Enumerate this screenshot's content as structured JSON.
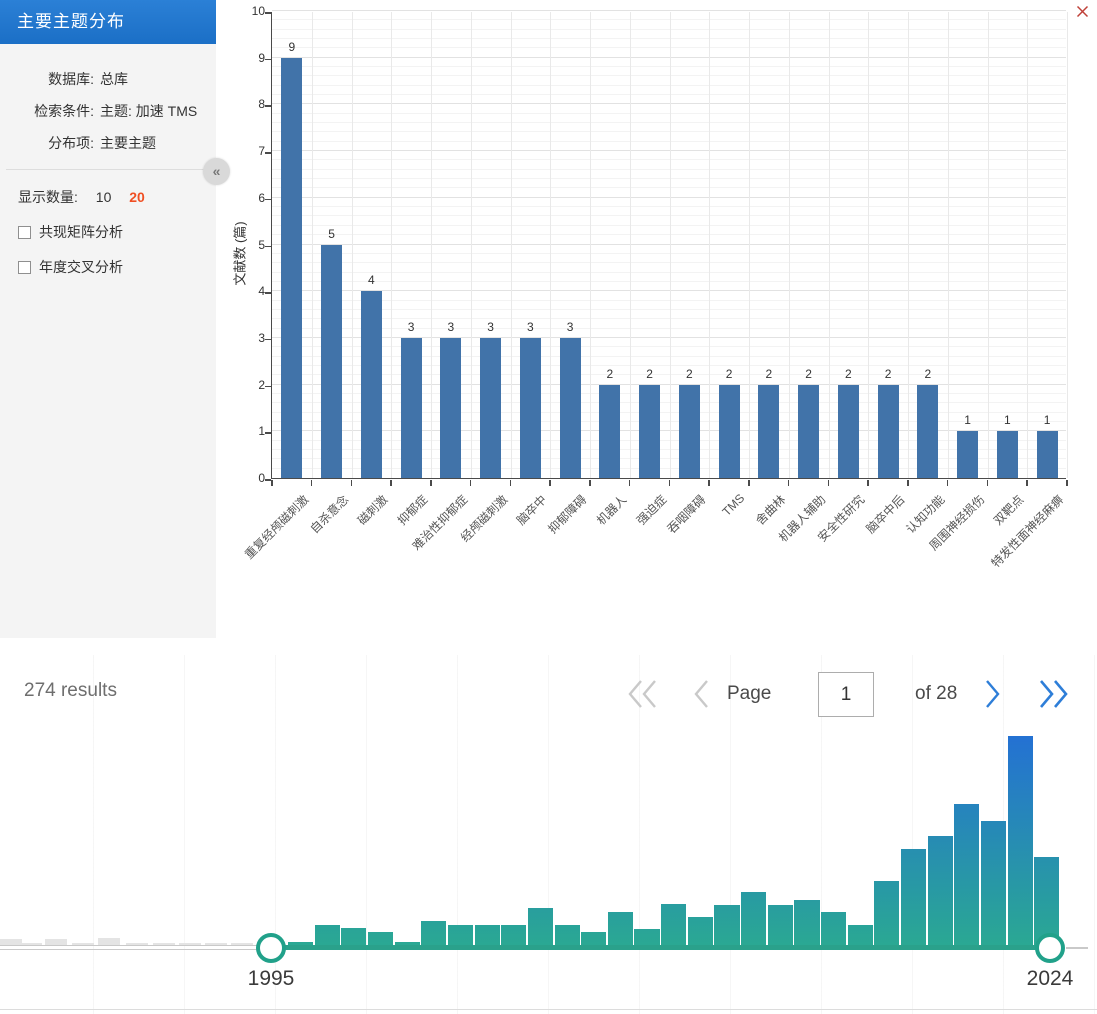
{
  "sidebar": {
    "title": "主要主题分布",
    "info_rows": [
      {
        "label": "数据库:",
        "value": "总库"
      },
      {
        "label": "检索条件:",
        "value": "主题: 加速 TMS"
      },
      {
        "label": "分布项:",
        "value": "主要主题"
      }
    ],
    "collapse_icon": "«",
    "display_count": {
      "label": "显示数量:",
      "options": [
        {
          "value": "10",
          "selected": false
        },
        {
          "value": "20",
          "selected": true
        }
      ]
    },
    "checkboxes": [
      {
        "label": "共现矩阵分析",
        "checked": false
      },
      {
        "label": "年度交叉分析",
        "checked": false
      }
    ]
  },
  "chart_data": [
    {
      "type": "bar",
      "ylabel": "文献数 (篇)",
      "xlabel": "",
      "ylim": [
        0,
        10
      ],
      "y_ticks": [
        0,
        1,
        2,
        3,
        4,
        5,
        6,
        7,
        8,
        9,
        10
      ],
      "grid": true,
      "bar_color": "#4173a9",
      "categories": [
        "重复经颅磁刺激",
        "自杀意念",
        "磁刺激",
        "抑郁症",
        "难治性抑郁症",
        "经颅磁刺激",
        "脑卒中",
        "抑郁障碍",
        "机器人",
        "强迫症",
        "吞咽障碍",
        "TMS",
        "舍曲林",
        "机器人辅助",
        "安全性研究",
        "脑卒中后",
        "认知功能",
        "周围神经损伤",
        "双靶点",
        "特发性面神经麻痹"
      ],
      "values": [
        9,
        5,
        4,
        3,
        3,
        3,
        3,
        3,
        2,
        2,
        2,
        2,
        2,
        2,
        2,
        2,
        2,
        1,
        1,
        1
      ]
    },
    {
      "type": "bar",
      "selected_range": [
        "1995",
        "2024"
      ],
      "pre_range_bar_heights": [
        6,
        2,
        6,
        2,
        7,
        2,
        2,
        2,
        2,
        2
      ],
      "in_range_bar_heights": [
        3,
        20,
        17,
        13,
        3,
        24,
        20,
        20,
        20,
        37,
        20,
        13,
        33,
        16,
        41,
        28,
        40,
        53,
        40,
        45,
        33,
        20,
        64,
        96,
        109,
        141,
        124,
        209,
        88
      ],
      "bar_color_bottom": "#2aa893",
      "bar_color_top_max": "#2471d3",
      "pre_range_bar_color": "#e4e4e4"
    }
  ],
  "chart": {
    "close_icon": "x"
  },
  "results": {
    "count_text": "274 results"
  },
  "pagination": {
    "page_label": "Page",
    "current_page": "1",
    "total_label": "of 28",
    "disabled_color": "#c9c9c9",
    "active_color": "#2e7ed8"
  },
  "timeline": {
    "start_year": "1995",
    "end_year": "2024"
  }
}
